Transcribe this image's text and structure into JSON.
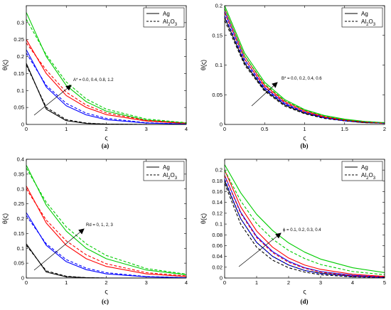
{
  "colors": {
    "black": "#000000",
    "red": "#ff0000",
    "blue": "#0000ff",
    "green": "#00cc00"
  },
  "chart_data": [
    {
      "type": "line",
      "panel_label": "(a)",
      "xlabel": "ς",
      "ylabel": "θ(ς)",
      "xlim": [
        0,
        4
      ],
      "ylim": [
        0,
        0.35
      ],
      "xticks": [
        "0",
        "1",
        "2",
        "3",
        "4"
      ],
      "yticks": [
        "0",
        "0.05",
        "0.1",
        "0.15",
        "0.2",
        "0.25",
        "0.3"
      ],
      "annotation": "A* = 0.0, 0.4, 0.8, 1.2",
      "legend": [
        {
          "label": "Ag",
          "style": "solid"
        },
        {
          "label": "Al2O3",
          "style": "dashed"
        }
      ],
      "series": [
        {
          "group": "Ag",
          "color": "#000000",
          "x": [
            0,
            0.5,
            1,
            1.5,
            2,
            3,
            4
          ],
          "y": [
            0.18,
            0.045,
            0.011,
            0.003,
            0.001,
            0,
            0
          ]
        },
        {
          "group": "Ag",
          "color": "#0000ff",
          "x": [
            0,
            0.5,
            1,
            1.5,
            2,
            3,
            4
          ],
          "y": [
            0.22,
            0.11,
            0.055,
            0.028,
            0.014,
            0.004,
            0.001
          ]
        },
        {
          "group": "Ag",
          "color": "#ff0000",
          "x": [
            0,
            0.5,
            1,
            1.5,
            2,
            3,
            4
          ],
          "y": [
            0.25,
            0.15,
            0.085,
            0.05,
            0.029,
            0.01,
            0.003
          ]
        },
        {
          "group": "Ag",
          "color": "#00cc00",
          "x": [
            0,
            0.5,
            1,
            1.5,
            2,
            3,
            4
          ],
          "y": [
            0.33,
            0.2,
            0.115,
            0.067,
            0.039,
            0.013,
            0.004
          ]
        },
        {
          "group": "Al2O3",
          "color": "#000000",
          "x": [
            0,
            0.5,
            1,
            1.5,
            2,
            3,
            4
          ],
          "y": [
            0.175,
            0.05,
            0.014,
            0.004,
            0.001,
            0,
            0
          ]
        },
        {
          "group": "Al2O3",
          "color": "#0000ff",
          "x": [
            0,
            0.5,
            1,
            1.5,
            2,
            3,
            4
          ],
          "y": [
            0.21,
            0.115,
            0.062,
            0.033,
            0.018,
            0.005,
            0.001
          ]
        },
        {
          "group": "Al2O3",
          "color": "#ff0000",
          "x": [
            0,
            0.5,
            1,
            1.5,
            2,
            3,
            4
          ],
          "y": [
            0.24,
            0.16,
            0.095,
            0.057,
            0.034,
            0.012,
            0.004
          ]
        },
        {
          "group": "Al2O3",
          "color": "#00cc00",
          "x": [
            0,
            0.5,
            1,
            1.5,
            2,
            3,
            4
          ],
          "y": [
            0.31,
            0.205,
            0.125,
            0.075,
            0.045,
            0.016,
            0.005
          ]
        }
      ]
    },
    {
      "type": "line",
      "panel_label": "(b)",
      "xlabel": "ς",
      "ylabel": "θ(ς)",
      "xlim": [
        0,
        2
      ],
      "ylim": [
        0,
        0.2
      ],
      "xticks": [
        "0",
        "0.5",
        "1",
        "1.5",
        "2"
      ],
      "yticks": [
        "0",
        "0.05",
        "0.1",
        "0.15",
        "0.2"
      ],
      "annotation": "B* = 0.0, 0.2, 0.4, 0.6",
      "legend": [
        {
          "label": "Ag",
          "style": "solid"
        },
        {
          "label": "Al2O3",
          "style": "dashed"
        }
      ],
      "series": [
        {
          "group": "Ag",
          "color": "#000000",
          "x": [
            0,
            0.25,
            0.5,
            0.75,
            1,
            1.25,
            1.5,
            1.75,
            2
          ],
          "y": [
            0.18,
            0.103,
            0.058,
            0.033,
            0.019,
            0.011,
            0.006,
            0.003,
            0.002
          ]
        },
        {
          "group": "Ag",
          "color": "#0000ff",
          "x": [
            0,
            0.25,
            0.5,
            0.75,
            1,
            1.25,
            1.5,
            1.75,
            2
          ],
          "y": [
            0.19,
            0.11,
            0.062,
            0.036,
            0.021,
            0.012,
            0.007,
            0.004,
            0.002
          ]
        },
        {
          "group": "Ag",
          "color": "#ff0000",
          "x": [
            0,
            0.25,
            0.5,
            0.75,
            1,
            1.25,
            1.5,
            1.75,
            2
          ],
          "y": [
            0.195,
            0.115,
            0.066,
            0.039,
            0.023,
            0.013,
            0.008,
            0.004,
            0.002
          ]
        },
        {
          "group": "Ag",
          "color": "#00cc00",
          "x": [
            0,
            0.25,
            0.5,
            0.75,
            1,
            1.25,
            1.5,
            1.75,
            2
          ],
          "y": [
            0.2,
            0.12,
            0.071,
            0.042,
            0.025,
            0.015,
            0.009,
            0.005,
            0.003
          ]
        },
        {
          "group": "Al2O3",
          "color": "#000000",
          "x": [
            0,
            0.25,
            0.5,
            0.75,
            1,
            1.25,
            1.5,
            1.75,
            2
          ],
          "y": [
            0.175,
            0.1,
            0.056,
            0.031,
            0.018,
            0.01,
            0.006,
            0.003,
            0.002
          ]
        },
        {
          "group": "Al2O3",
          "color": "#0000ff",
          "x": [
            0,
            0.25,
            0.5,
            0.75,
            1,
            1.25,
            1.5,
            1.75,
            2
          ],
          "y": [
            0.183,
            0.106,
            0.06,
            0.034,
            0.02,
            0.011,
            0.006,
            0.004,
            0.002
          ]
        },
        {
          "group": "Al2O3",
          "color": "#ff0000",
          "x": [
            0,
            0.25,
            0.5,
            0.75,
            1,
            1.25,
            1.5,
            1.75,
            2
          ],
          "y": [
            0.188,
            0.11,
            0.063,
            0.037,
            0.021,
            0.012,
            0.007,
            0.004,
            0.002
          ]
        },
        {
          "group": "Al2O3",
          "color": "#00cc00",
          "x": [
            0,
            0.25,
            0.5,
            0.75,
            1,
            1.25,
            1.5,
            1.75,
            2
          ],
          "y": [
            0.195,
            0.115,
            0.068,
            0.04,
            0.024,
            0.014,
            0.008,
            0.005,
            0.003
          ]
        }
      ]
    },
    {
      "type": "line",
      "panel_label": "(c)",
      "xlabel": "ς",
      "ylabel": "θ(ς)",
      "xlim": [
        0,
        4
      ],
      "ylim": [
        0,
        0.4
      ],
      "xticks": [
        "0",
        "1",
        "2",
        "3",
        "4"
      ],
      "yticks": [
        "0",
        "0.05",
        "0.1",
        "0.15",
        "0.2",
        "0.25",
        "0.3",
        "0.35",
        "0.4"
      ],
      "annotation": "Rd = 0, 1, 2, 3",
      "legend": [
        {
          "label": "Ag",
          "style": "solid"
        },
        {
          "label": "Al2O3",
          "style": "dashed"
        }
      ],
      "series": [
        {
          "group": "Ag",
          "color": "#000000",
          "x": [
            0,
            0.5,
            1,
            1.5,
            2,
            3,
            4
          ],
          "y": [
            0.115,
            0.02,
            0.004,
            0.001,
            0,
            0,
            0
          ]
        },
        {
          "group": "Ag",
          "color": "#0000ff",
          "x": [
            0,
            0.5,
            1,
            1.5,
            2,
            3,
            4
          ],
          "y": [
            0.22,
            0.11,
            0.055,
            0.028,
            0.014,
            0.004,
            0.001
          ]
        },
        {
          "group": "Ag",
          "color": "#ff0000",
          "x": [
            0,
            0.5,
            1,
            1.5,
            2,
            3,
            4
          ],
          "y": [
            0.31,
            0.185,
            0.11,
            0.065,
            0.039,
            0.014,
            0.005
          ]
        },
        {
          "group": "Ag",
          "color": "#00cc00",
          "x": [
            0,
            0.5,
            1,
            1.5,
            2,
            3,
            4
          ],
          "y": [
            0.38,
            0.245,
            0.158,
            0.1,
            0.065,
            0.027,
            0.011
          ]
        },
        {
          "group": "Al2O3",
          "color": "#000000",
          "x": [
            0,
            0.5,
            1,
            1.5,
            2,
            3,
            4
          ],
          "y": [
            0.11,
            0.024,
            0.006,
            0.001,
            0,
            0,
            0
          ]
        },
        {
          "group": "Al2O3",
          "color": "#0000ff",
          "x": [
            0,
            0.5,
            1,
            1.5,
            2,
            3,
            4
          ],
          "y": [
            0.21,
            0.115,
            0.062,
            0.033,
            0.018,
            0.005,
            0.001
          ]
        },
        {
          "group": "Al2O3",
          "color": "#ff0000",
          "x": [
            0,
            0.5,
            1,
            1.5,
            2,
            3,
            4
          ],
          "y": [
            0.3,
            0.195,
            0.125,
            0.078,
            0.048,
            0.018,
            0.007
          ]
        },
        {
          "group": "Al2O3",
          "color": "#00cc00",
          "x": [
            0,
            0.5,
            1,
            1.5,
            2,
            3,
            4
          ],
          "y": [
            0.37,
            0.255,
            0.172,
            0.115,
            0.076,
            0.032,
            0.013
          ]
        }
      ]
    },
    {
      "type": "line",
      "panel_label": "(d)",
      "xlabel": "ς",
      "ylabel": "θ(ς)",
      "xlim": [
        0,
        5
      ],
      "ylim": [
        0,
        0.22
      ],
      "xticks": [
        "0",
        "1",
        "2",
        "3",
        "4",
        "5"
      ],
      "yticks": [
        "0",
        "0.02",
        "0.04",
        "0.06",
        "0.08",
        "0.1",
        "0.12",
        "0.14",
        "0.16",
        "0.18",
        "0.2"
      ],
      "annotation": "ϕ = 0.1, 0.2, 0.3, 0.4",
      "legend": [
        {
          "label": "Ag",
          "style": "solid"
        },
        {
          "label": "Al2O3",
          "style": "dashed"
        }
      ],
      "series": [
        {
          "group": "Ag",
          "color": "#000000",
          "x": [
            0,
            0.5,
            1,
            1.5,
            2,
            2.5,
            3,
            4,
            5
          ],
          "y": [
            0.18,
            0.11,
            0.066,
            0.04,
            0.024,
            0.014,
            0.009,
            0.003,
            0.001
          ]
        },
        {
          "group": "Ag",
          "color": "#0000ff",
          "x": [
            0,
            0.5,
            1,
            1.5,
            2,
            2.5,
            3,
            4,
            5
          ],
          "y": [
            0.19,
            0.122,
            0.077,
            0.049,
            0.031,
            0.019,
            0.012,
            0.005,
            0.002
          ]
        },
        {
          "group": "Ag",
          "color": "#ff0000",
          "x": [
            0,
            0.5,
            1,
            1.5,
            2,
            2.5,
            3,
            4,
            5
          ],
          "y": [
            0.2,
            0.132,
            0.087,
            0.057,
            0.037,
            0.024,
            0.016,
            0.007,
            0.003
          ]
        },
        {
          "group": "Ag",
          "color": "#00cc00",
          "x": [
            0,
            0.5,
            1,
            1.5,
            2,
            2.5,
            3,
            4,
            5
          ],
          "y": [
            0.21,
            0.158,
            0.118,
            0.088,
            0.065,
            0.048,
            0.035,
            0.019,
            0.01
          ]
        },
        {
          "group": "Al2O3",
          "color": "#000000",
          "x": [
            0,
            0.5,
            1,
            1.5,
            2,
            2.5,
            3,
            4,
            5
          ],
          "y": [
            0.175,
            0.1,
            0.057,
            0.033,
            0.019,
            0.011,
            0.006,
            0.002,
            0.001
          ]
        },
        {
          "group": "Al2O3",
          "color": "#0000ff",
          "x": [
            0,
            0.5,
            1,
            1.5,
            2,
            2.5,
            3,
            4,
            5
          ],
          "y": [
            0.183,
            0.11,
            0.066,
            0.04,
            0.024,
            0.014,
            0.008,
            0.003,
            0.001
          ]
        },
        {
          "group": "Al2O3",
          "color": "#ff0000",
          "x": [
            0,
            0.5,
            1,
            1.5,
            2,
            2.5,
            3,
            4,
            5
          ],
          "y": [
            0.19,
            0.12,
            0.075,
            0.047,
            0.029,
            0.018,
            0.011,
            0.004,
            0.002
          ]
        },
        {
          "group": "Al2O3",
          "color": "#00cc00",
          "x": [
            0,
            0.5,
            1,
            1.5,
            2,
            2.5,
            3,
            4,
            5
          ],
          "y": [
            0.2,
            0.143,
            0.101,
            0.072,
            0.051,
            0.036,
            0.025,
            0.012,
            0.006
          ]
        }
      ]
    }
  ]
}
